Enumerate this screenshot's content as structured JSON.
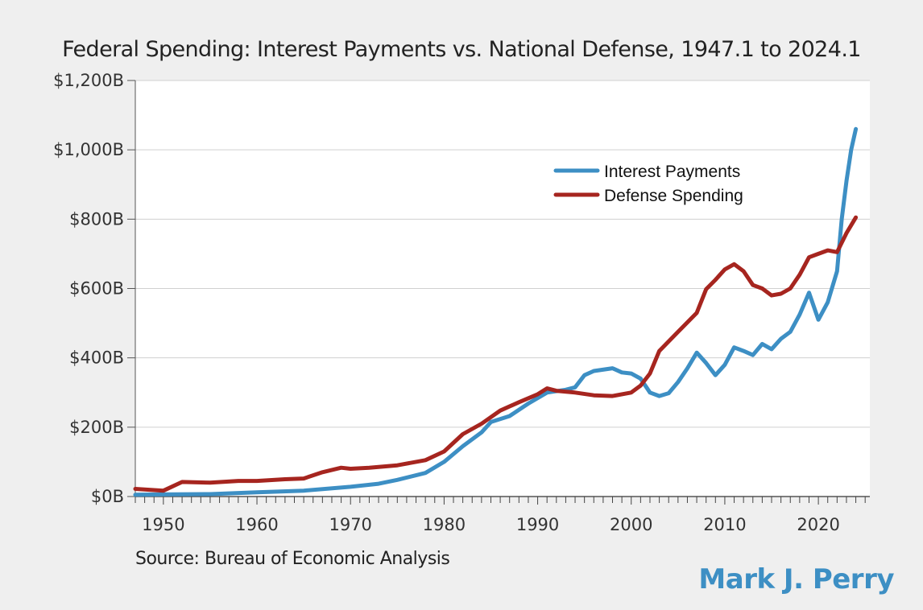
{
  "chart_data": {
    "type": "line",
    "title": "Federal Spending: Interest Payments vs. National Defense, 1947.1 to 2024.1",
    "xlabel": "",
    "ylabel": "",
    "xlim": [
      1947,
      2025.5
    ],
    "ylim": [
      0,
      1200
    ],
    "x_ticks": [
      1950,
      1960,
      1970,
      1980,
      1990,
      2000,
      2010,
      2020
    ],
    "x_tick_labels": [
      "1950",
      "1960",
      "1970",
      "1980",
      "1990",
      "2000",
      "2010",
      "2020"
    ],
    "y_ticks": [
      0,
      200,
      400,
      600,
      800,
      1000,
      1200
    ],
    "y_tick_labels": [
      "$0B",
      "$200B",
      "$400B",
      "$600B",
      "$800B",
      "$1,000B",
      "$1,200B"
    ],
    "grid": "horizontal",
    "legend_position": "top-right",
    "series": [
      {
        "name": "Interest Payments",
        "color": "#3d8fc4",
        "points": [
          [
            1947,
            5
          ],
          [
            1950,
            6
          ],
          [
            1955,
            7
          ],
          [
            1960,
            12
          ],
          [
            1965,
            17
          ],
          [
            1970,
            28
          ],
          [
            1973,
            37
          ],
          [
            1975,
            48
          ],
          [
            1978,
            68
          ],
          [
            1980,
            100
          ],
          [
            1982,
            145
          ],
          [
            1984,
            185
          ],
          [
            1985,
            215
          ],
          [
            1987,
            232
          ],
          [
            1989,
            268
          ],
          [
            1991,
            300
          ],
          [
            1993,
            308
          ],
          [
            1994,
            315
          ],
          [
            1995,
            350
          ],
          [
            1996,
            362
          ],
          [
            1998,
            370
          ],
          [
            1999,
            358
          ],
          [
            2000,
            355
          ],
          [
            2001,
            340
          ],
          [
            2002,
            300
          ],
          [
            2003,
            290
          ],
          [
            2004,
            298
          ],
          [
            2005,
            330
          ],
          [
            2006,
            370
          ],
          [
            2007,
            415
          ],
          [
            2008,
            385
          ],
          [
            2009,
            350
          ],
          [
            2010,
            380
          ],
          [
            2011,
            430
          ],
          [
            2012,
            420
          ],
          [
            2013,
            408
          ],
          [
            2014,
            440
          ],
          [
            2015,
            425
          ],
          [
            2016,
            455
          ],
          [
            2017,
            475
          ],
          [
            2018,
            525
          ],
          [
            2019,
            588
          ],
          [
            2020,
            510
          ],
          [
            2021,
            560
          ],
          [
            2022,
            650
          ],
          [
            2022.5,
            800
          ],
          [
            2023,
            910
          ],
          [
            2023.5,
            1000
          ],
          [
            2024,
            1060
          ]
        ]
      },
      {
        "name": "Defense Spending",
        "color": "#a6251f",
        "points": [
          [
            1947,
            22
          ],
          [
            1950,
            17
          ],
          [
            1952,
            42
          ],
          [
            1955,
            40
          ],
          [
            1958,
            45
          ],
          [
            1960,
            45
          ],
          [
            1963,
            50
          ],
          [
            1965,
            52
          ],
          [
            1967,
            70
          ],
          [
            1969,
            83
          ],
          [
            1970,
            80
          ],
          [
            1972,
            83
          ],
          [
            1975,
            90
          ],
          [
            1978,
            105
          ],
          [
            1980,
            130
          ],
          [
            1982,
            180
          ],
          [
            1984,
            210
          ],
          [
            1986,
            248
          ],
          [
            1988,
            272
          ],
          [
            1990,
            295
          ],
          [
            1991,
            312
          ],
          [
            1992,
            305
          ],
          [
            1994,
            300
          ],
          [
            1996,
            292
          ],
          [
            1998,
            290
          ],
          [
            2000,
            300
          ],
          [
            2001,
            320
          ],
          [
            2002,
            355
          ],
          [
            2003,
            420
          ],
          [
            2005,
            475
          ],
          [
            2007,
            530
          ],
          [
            2008,
            598
          ],
          [
            2009,
            625
          ],
          [
            2010,
            655
          ],
          [
            2011,
            670
          ],
          [
            2012,
            650
          ],
          [
            2013,
            610
          ],
          [
            2014,
            600
          ],
          [
            2015,
            580
          ],
          [
            2016,
            585
          ],
          [
            2017,
            600
          ],
          [
            2018,
            640
          ],
          [
            2019,
            690
          ],
          [
            2020,
            700
          ],
          [
            2021,
            710
          ],
          [
            2022,
            705
          ],
          [
            2023,
            760
          ],
          [
            2024,
            805
          ]
        ]
      }
    ],
    "source": "Source: Bureau of Economic Analysis",
    "credit": "Mark J. Perry"
  }
}
